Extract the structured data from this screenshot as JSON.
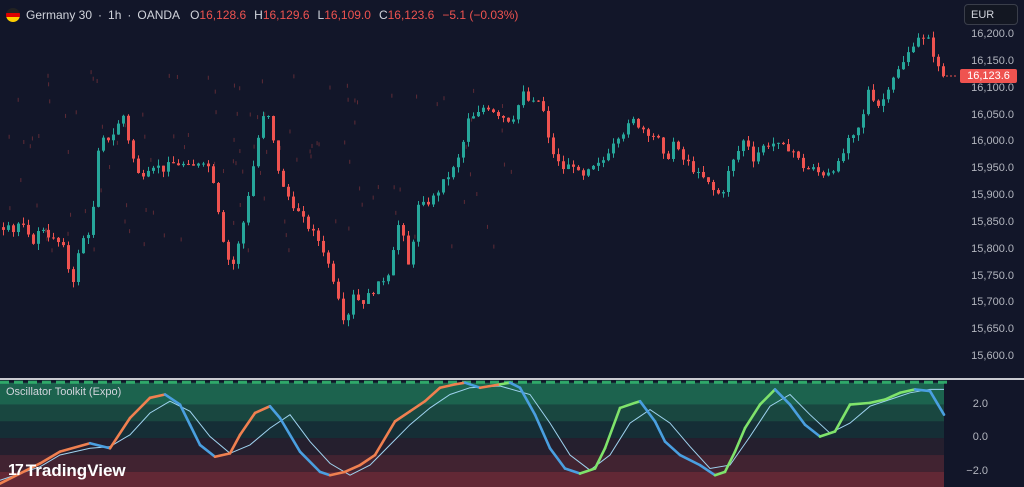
{
  "header": {
    "symbol": "Germany 30",
    "timeframe": "1h",
    "broker": "OANDA",
    "sep1": "·",
    "sep2": "·",
    "o_label": "O",
    "o_value": "16,128.6",
    "h_label": "H",
    "h_value": "16,129.6",
    "l_label": "L",
    "l_value": "16,109.0",
    "c_label": "C",
    "c_value": "16,123.6",
    "change": "−5.1 (−0.03%)"
  },
  "currency_button": "EUR",
  "price_axis": [
    "16,200.0",
    "16,150.0",
    "16,100.0",
    "16,050.0",
    "16,000.0",
    "15,950.0",
    "15,900.0",
    "15,850.0",
    "15,800.0",
    "15,750.0",
    "15,700.0",
    "15,650.0",
    "15,600.0"
  ],
  "last_price": "16,123.6",
  "indicator": {
    "title": "Oscillator Toolkit (Expo)",
    "axis": [
      "2.0",
      "0.0",
      "−2.0"
    ]
  },
  "logo": {
    "mark": "17",
    "text": "TradingView"
  },
  "colors": {
    "up": "#26a69a",
    "down": "#ef5350",
    "fast_bull": "#7fe36b",
    "fast_bear": "#f08050",
    "slow": "#4a9fe0",
    "signal": "#9fd3f0"
  },
  "chart_data": [
    {
      "type": "candlestick",
      "title": "Germany 30 · 1h · OANDA",
      "ylabel": "EUR",
      "ylim": [
        15570,
        16230
      ],
      "x": "hourly bars (approx. 190)",
      "anchor_closes": [
        [
          0,
          15830
        ],
        [
          5,
          15860
        ],
        [
          10,
          15840
        ],
        [
          14,
          15830
        ],
        [
          18,
          15855
        ],
        [
          25,
          15830
        ],
        [
          30,
          15810
        ],
        [
          36,
          15830
        ],
        [
          42,
          15840
        ],
        [
          50,
          15820
        ],
        [
          60,
          15810
        ],
        [
          65,
          15790
        ],
        [
          70,
          15730
        ],
        [
          74,
          15760
        ],
        [
          78,
          15800
        ],
        [
          84,
          15830
        ],
        [
          90,
          15835
        ],
        [
          98,
          16000
        ],
        [
          110,
          16010
        ],
        [
          122,
          16050
        ],
        [
          130,
          15980
        ],
        [
          138,
          15935
        ],
        [
          150,
          15960
        ],
        [
          162,
          15950
        ],
        [
          170,
          15960
        ],
        [
          180,
          15960
        ],
        [
          190,
          15950
        ],
        [
          200,
          15970
        ],
        [
          206,
          15960
        ],
        [
          212,
          15930
        ],
        [
          222,
          15820
        ],
        [
          230,
          15760
        ],
        [
          240,
          15830
        ],
        [
          260,
          16040
        ],
        [
          266,
          16055
        ],
        [
          272,
          16000
        ],
        [
          280,
          15920
        ],
        [
          290,
          15890
        ],
        [
          300,
          15860
        ],
        [
          320,
          15810
        ],
        [
          335,
          15730
        ],
        [
          344,
          15660
        ],
        [
          352,
          15720
        ],
        [
          360,
          15700
        ],
        [
          370,
          15720
        ],
        [
          380,
          15740
        ],
        [
          388,
          15760
        ],
        [
          396,
          15850
        ],
        [
          402,
          15820
        ],
        [
          408,
          15760
        ],
        [
          416,
          15880
        ],
        [
          420,
          15880
        ],
        [
          428,
          15890
        ],
        [
          434,
          15900
        ],
        [
          440,
          15920
        ],
        [
          452,
          15950
        ],
        [
          460,
          15980
        ],
        [
          466,
          16040
        ],
        [
          476,
          16050
        ],
        [
          484,
          16070
        ],
        [
          492,
          16060
        ],
        [
          500,
          16050
        ],
        [
          510,
          16040
        ],
        [
          522,
          16090
        ],
        [
          530,
          16070
        ],
        [
          540,
          16080
        ],
        [
          546,
          16010
        ],
        [
          552,
          15980
        ],
        [
          560,
          15950
        ],
        [
          572,
          15960
        ],
        [
          580,
          15930
        ],
        [
          590,
          15950
        ],
        [
          600,
          15960
        ],
        [
          614,
          16010
        ],
        [
          622,
          16020
        ],
        [
          632,
          16040
        ],
        [
          646,
          16020
        ],
        [
          656,
          16010
        ],
        [
          664,
          15960
        ],
        [
          672,
          16000
        ],
        [
          680,
          15970
        ],
        [
          688,
          15960
        ],
        [
          696,
          15940
        ],
        [
          704,
          15930
        ],
        [
          712,
          15910
        ],
        [
          720,
          15900
        ],
        [
          728,
          15950
        ],
        [
          736,
          15980
        ],
        [
          744,
          16010
        ],
        [
          752,
          15970
        ],
        [
          760,
          15990
        ],
        [
          770,
          16000
        ],
        [
          780,
          15990
        ],
        [
          790,
          15990
        ],
        [
          796,
          15970
        ],
        [
          804,
          15950
        ],
        [
          812,
          15950
        ],
        [
          820,
          15940
        ],
        [
          830,
          15950
        ],
        [
          838,
          15960
        ],
        [
          846,
          16000
        ],
        [
          854,
          16010
        ],
        [
          862,
          16050
        ],
        [
          868,
          16110
        ],
        [
          874,
          16070
        ],
        [
          880,
          16070
        ],
        [
          890,
          16120
        ],
        [
          900,
          16140
        ],
        [
          908,
          16170
        ],
        [
          916,
          16200
        ],
        [
          922,
          16190
        ],
        [
          928,
          16190
        ],
        [
          936,
          16140
        ],
        [
          942,
          16123.6
        ]
      ],
      "last": 16123.6
    },
    {
      "type": "line",
      "title": "Oscillator Toolkit (Expo)",
      "ylim": [
        -2.9,
        3.4
      ],
      "series": [
        {
          "role": "fast oscillator",
          "x": [
            0,
            40,
            60,
            90,
            110,
            130,
            150,
            165,
            180,
            190,
            200,
            215,
            230,
            240,
            255,
            270,
            280,
            300,
            320,
            330,
            345,
            360,
            375,
            395,
            410,
            425,
            440,
            455,
            465,
            480,
            500,
            510,
            520,
            535,
            550,
            565,
            580,
            595,
            605,
            620,
            640,
            655,
            665,
            680,
            700,
            715,
            725,
            735,
            745,
            760,
            775,
            790,
            805,
            820,
            835,
            850,
            870,
            885,
            900,
            915,
            930,
            938,
            944
          ],
          "values": [
            -2.7,
            -1.5,
            -0.8,
            -0.3,
            -0.6,
            1.2,
            2.4,
            2.6,
            2.0,
            0.8,
            -0.4,
            -1.1,
            -0.9,
            0.2,
            1.5,
            1.9,
            1.2,
            -0.8,
            -2.0,
            -2.2,
            -2.0,
            -1.6,
            -1.0,
            1.0,
            1.6,
            2.2,
            3.0,
            3.2,
            3.3,
            3.0,
            3.2,
            3.3,
            3.0,
            1.4,
            -0.6,
            -1.8,
            -2.1,
            -1.8,
            -0.6,
            1.8,
            2.2,
            1.0,
            -0.2,
            -1.0,
            -1.6,
            -2.2,
            -2.0,
            -0.8,
            0.6,
            2.0,
            2.9,
            2.0,
            0.8,
            0.1,
            0.4,
            2.0,
            2.1,
            2.3,
            2.7,
            2.9,
            2.8,
            2.0,
            1.4
          ]
        },
        {
          "role": "slow signal",
          "x": [
            0,
            40,
            60,
            90,
            110,
            130,
            150,
            170,
            190,
            210,
            230,
            250,
            270,
            290,
            310,
            330,
            350,
            370,
            390,
            410,
            430,
            450,
            470,
            500,
            530,
            550,
            570,
            590,
            610,
            630,
            650,
            670,
            690,
            710,
            730,
            750,
            770,
            790,
            810,
            830,
            850,
            870,
            890,
            910,
            930,
            944
          ],
          "values": [
            -2.5,
            -1.7,
            -1.0,
            -0.6,
            -0.5,
            0.2,
            1.5,
            2.2,
            1.6,
            0.1,
            -0.9,
            -0.4,
            0.6,
            1.4,
            -0.2,
            -1.5,
            -2.2,
            -1.6,
            -0.4,
            0.8,
            1.8,
            2.6,
            3.0,
            3.1,
            2.6,
            0.9,
            -1.0,
            -1.9,
            -1.0,
            0.9,
            1.7,
            0.9,
            -0.5,
            -1.8,
            -1.6,
            0.1,
            1.9,
            2.6,
            1.4,
            0.3,
            0.9,
            1.9,
            2.3,
            2.7,
            2.9,
            2.9
          ]
        }
      ]
    }
  ]
}
